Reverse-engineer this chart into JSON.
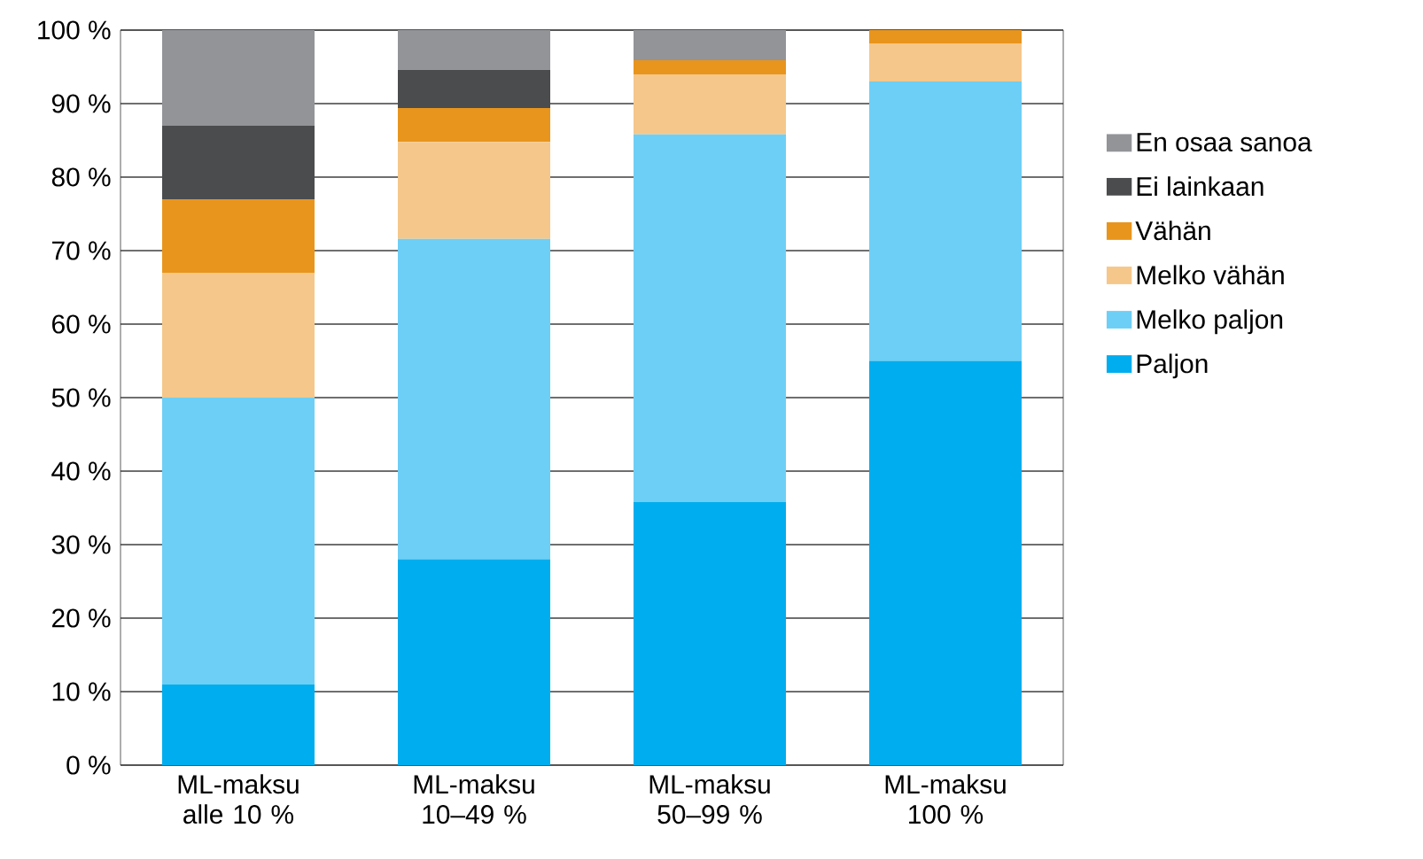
{
  "chart_data": {
    "type": "bar",
    "stacked": true,
    "categories": [
      "ML-maksu alle 10 %",
      "ML-maksu 10–49 %",
      "ML-maksu 50–99 %",
      "ML-maksu 100 %"
    ],
    "series": [
      {
        "name": "Paljon",
        "color": "#00adee",
        "values": [
          11,
          28,
          35.8,
          55
        ]
      },
      {
        "name": "Melko paljon",
        "color": "#6dcff6",
        "values": [
          39,
          43.6,
          50,
          38
        ]
      },
      {
        "name": "Melko vähän",
        "color": "#f5c78a",
        "values": [
          17,
          13.2,
          8.1,
          5.2
        ]
      },
      {
        "name": "Vähän",
        "color": "#e8951d",
        "values": [
          10,
          4.6,
          2,
          1.8
        ]
      },
      {
        "name": "Ei lainkaan",
        "color": "#4b4c4e",
        "values": [
          10,
          5.2,
          0,
          0
        ]
      },
      {
        "name": "En osaa sanoa",
        "color": "#929497",
        "values": [
          13,
          5.4,
          4.1,
          0
        ]
      }
    ],
    "ylim": [
      0,
      100
    ],
    "yticks": [
      {
        "value": 0,
        "label": "0 %"
      },
      {
        "value": 10,
        "label": "10 %"
      },
      {
        "value": 20,
        "label": "20 %"
      },
      {
        "value": 30,
        "label": "30 %"
      },
      {
        "value": 40,
        "label": "40 %"
      },
      {
        "value": 50,
        "label": "50 %"
      },
      {
        "value": 60,
        "label": "60 %"
      },
      {
        "value": 70,
        "label": "70 %"
      },
      {
        "value": 80,
        "label": "80 %"
      },
      {
        "value": 90,
        "label": "90 %"
      },
      {
        "value": 100,
        "label": "100 %"
      }
    ],
    "grid": "y",
    "legend": "right"
  }
}
